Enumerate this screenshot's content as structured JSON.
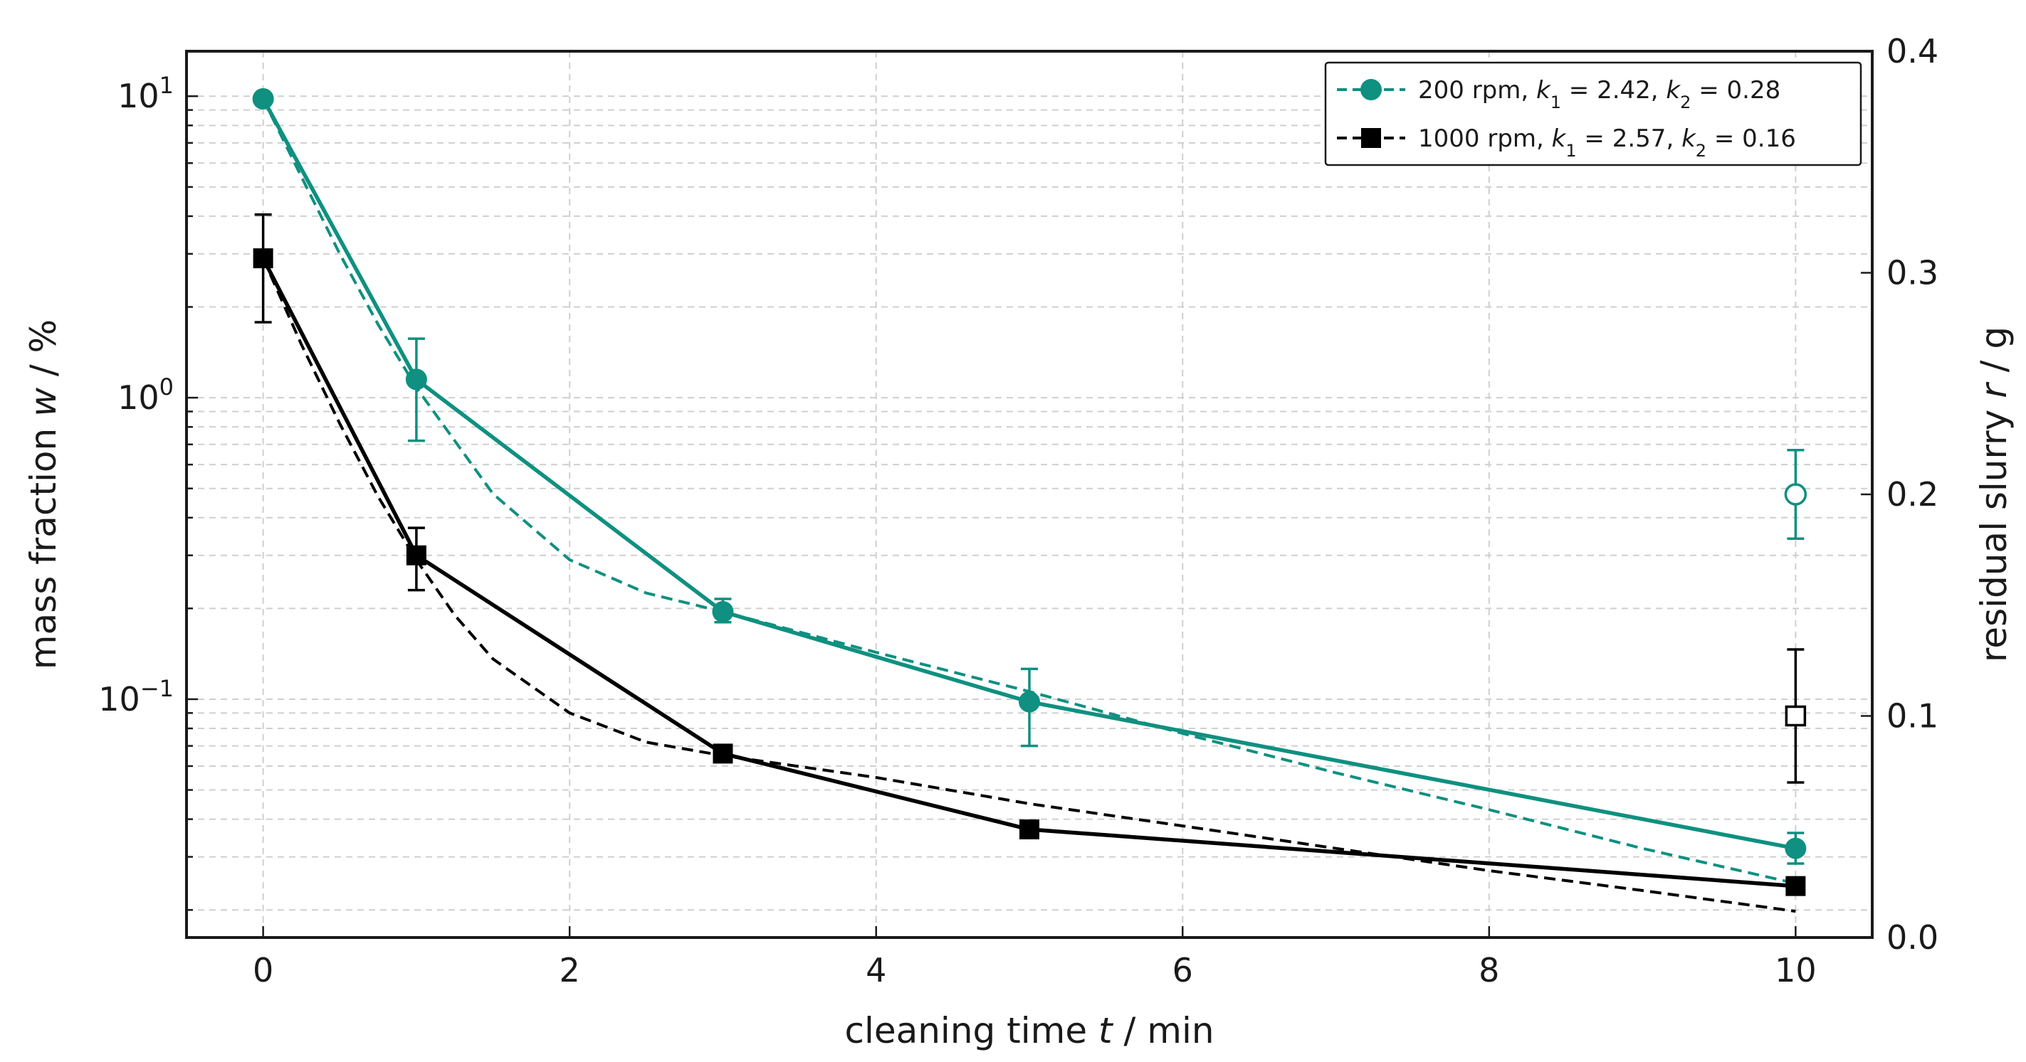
{
  "chart_data": {
    "type": "line",
    "xlabel_parts": [
      "cleaning time ",
      "t",
      " / min"
    ],
    "ylabel_left_parts": [
      "mass fraction ",
      "w",
      " / %"
    ],
    "ylabel_right_parts": [
      "residual slurry ",
      "r",
      " / g"
    ],
    "xlim": [
      -0.5,
      10.5
    ],
    "ylim_left_log": [
      0.0162,
      14.1
    ],
    "ylim_right": [
      0.0,
      0.4
    ],
    "x_ticks": [
      0,
      2,
      4,
      6,
      8,
      10
    ],
    "x_tick_labels": [
      "0",
      "2",
      "4",
      "6",
      "8",
      "10"
    ],
    "y_left_scale": "log",
    "y_left_ticks": [
      0.1,
      1,
      10
    ],
    "y_left_tick_labels": [
      {
        "base": "10",
        "exp": "−1"
      },
      {
        "base": "10",
        "exp": "0"
      },
      {
        "base": "10",
        "exp": "1"
      }
    ],
    "y_right_ticks": [
      0.0,
      0.1,
      0.2,
      0.3,
      0.4
    ],
    "y_right_tick_labels": [
      "0.0",
      "0.1",
      "0.2",
      "0.3",
      "0.4"
    ],
    "grid": true,
    "legend_position": "top-right",
    "colors": {
      "rpm200": "#0f9080",
      "rpm1000": "#000000"
    },
    "series": [
      {
        "key": "rpm200",
        "marker": "circle",
        "legend": {
          "prefix": "200 rpm, ",
          "k1": "2.42",
          "k2": "0.28"
        },
        "x": [
          0,
          1,
          3,
          5,
          10
        ],
        "y": [
          9.8,
          1.15,
          0.195,
          0.098,
          0.032
        ],
        "err_low": [
          9.8,
          0.72,
          0.18,
          0.07,
          0.0285
        ],
        "err_high": [
          9.8,
          1.57,
          0.215,
          0.126,
          0.036
        ],
        "fit_x": [
          0,
          0.25,
          0.5,
          0.75,
          1,
          1.5,
          2,
          2.5,
          3,
          4,
          5,
          6,
          7,
          8,
          9,
          10
        ],
        "fit_y": [
          9.8,
          5.4,
          3.0,
          1.75,
          1.08,
          0.48,
          0.29,
          0.225,
          0.195,
          0.143,
          0.106,
          0.077,
          0.057,
          0.043,
          0.032,
          0.0245
        ],
        "residual": {
          "x": 10,
          "y": 0.2,
          "err_low": 0.18,
          "err_high": 0.22
        }
      },
      {
        "key": "rpm1000",
        "marker": "square",
        "legend": {
          "prefix": "1000 rpm, ",
          "k1": "2.57",
          "k2": "0.16"
        },
        "x": [
          0,
          1,
          3,
          5,
          10
        ],
        "y": [
          2.9,
          0.3,
          0.066,
          0.037,
          0.024
        ],
        "err_low": [
          1.78,
          0.23,
          0.064,
          0.036,
          0.0232
        ],
        "err_high": [
          4.05,
          0.37,
          0.068,
          0.038,
          0.0248
        ],
        "fit_x": [
          0,
          0.25,
          0.5,
          0.75,
          1,
          1.25,
          1.5,
          2,
          2.5,
          3,
          4,
          5,
          6,
          7,
          8,
          9,
          10
        ],
        "fit_y": [
          2.9,
          1.5,
          0.82,
          0.47,
          0.29,
          0.19,
          0.136,
          0.09,
          0.072,
          0.065,
          0.055,
          0.045,
          0.038,
          0.032,
          0.027,
          0.0232,
          0.0198
        ],
        "residual": {
          "x": 10,
          "y": 0.1,
          "err_low": 0.07,
          "err_high": 0.13
        }
      }
    ]
  }
}
